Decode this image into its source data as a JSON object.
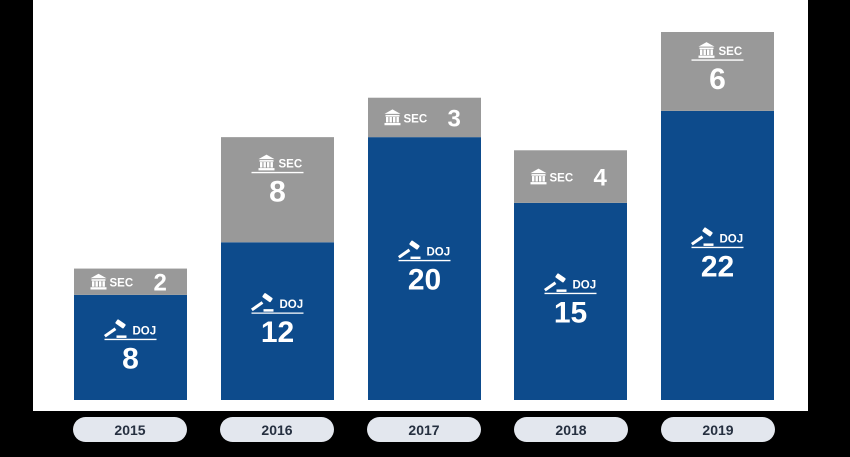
{
  "chart_data": {
    "type": "bar",
    "stacked": true,
    "categories": [
      "2015",
      "2016",
      "2017",
      "2018",
      "2019"
    ],
    "series": [
      {
        "name": "DOJ",
        "values": [
          8,
          12,
          20,
          15,
          22
        ]
      },
      {
        "name": "SEC",
        "values": [
          2,
          8,
          3,
          4,
          6
        ]
      }
    ],
    "title": "",
    "xlabel": "",
    "ylabel": "",
    "ylim": [
      0,
      28
    ],
    "grid": false,
    "legend": "none"
  },
  "colors": {
    "doj": "#0d4b8c",
    "sec": "#999999",
    "background": "#ffffff",
    "outer_background": "#000000",
    "year_pill": "#e3e7ee",
    "label_text": "#ffffff"
  },
  "icons": {
    "doj": "gavel-icon",
    "sec": "bank-building-icon"
  }
}
